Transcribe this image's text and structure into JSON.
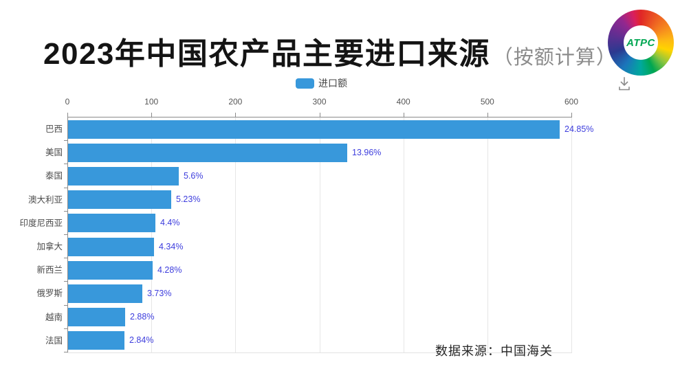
{
  "page": {
    "title_main": "2023年中国农产品主要进口来源",
    "title_sub": "（按额计算）",
    "logo_text": "ATPC"
  },
  "legend": {
    "label": "进口额"
  },
  "colors": {
    "bar": "#3898db",
    "value_label": "#3d3ddd",
    "axis_line": "#8a8a8a",
    "grid_line": "#e6e6e6",
    "plot_bottom_line": "#e3e3e3",
    "tick_label": "#555555",
    "category_label": "#4c4c4c",
    "title": "#141414",
    "subtitle": "#8c8c8c",
    "source_text": "#262626",
    "logo_text": "#00a651",
    "download_icon": "#8a8a8a"
  },
  "chart_data": {
    "type": "bar",
    "orientation": "horizontal",
    "title": "2023年中国农产品主要进口来源（按额计算）",
    "legend": [
      "进口额"
    ],
    "legend_position": "top",
    "grid": true,
    "categories": [
      "巴西",
      "美国",
      "泰国",
      "澳大利亚",
      "印度尼西亚",
      "加拿大",
      "新西兰",
      "俄罗斯",
      "越南",
      "法国"
    ],
    "series": [
      {
        "name": "进口额",
        "values": [
          585,
          332,
          132,
          123,
          104,
          102,
          101,
          88,
          68,
          67
        ]
      }
    ],
    "value_labels": [
      "24.85%",
      "13.96%",
      "5.6%",
      "5.23%",
      "4.4%",
      "4.34%",
      "4.28%",
      "3.73%",
      "2.88%",
      "2.84%"
    ],
    "xlim": [
      0,
      600
    ],
    "x_ticks": [
      0,
      100,
      200,
      300,
      400,
      500,
      600
    ],
    "source": "数据来源：中国海关"
  }
}
